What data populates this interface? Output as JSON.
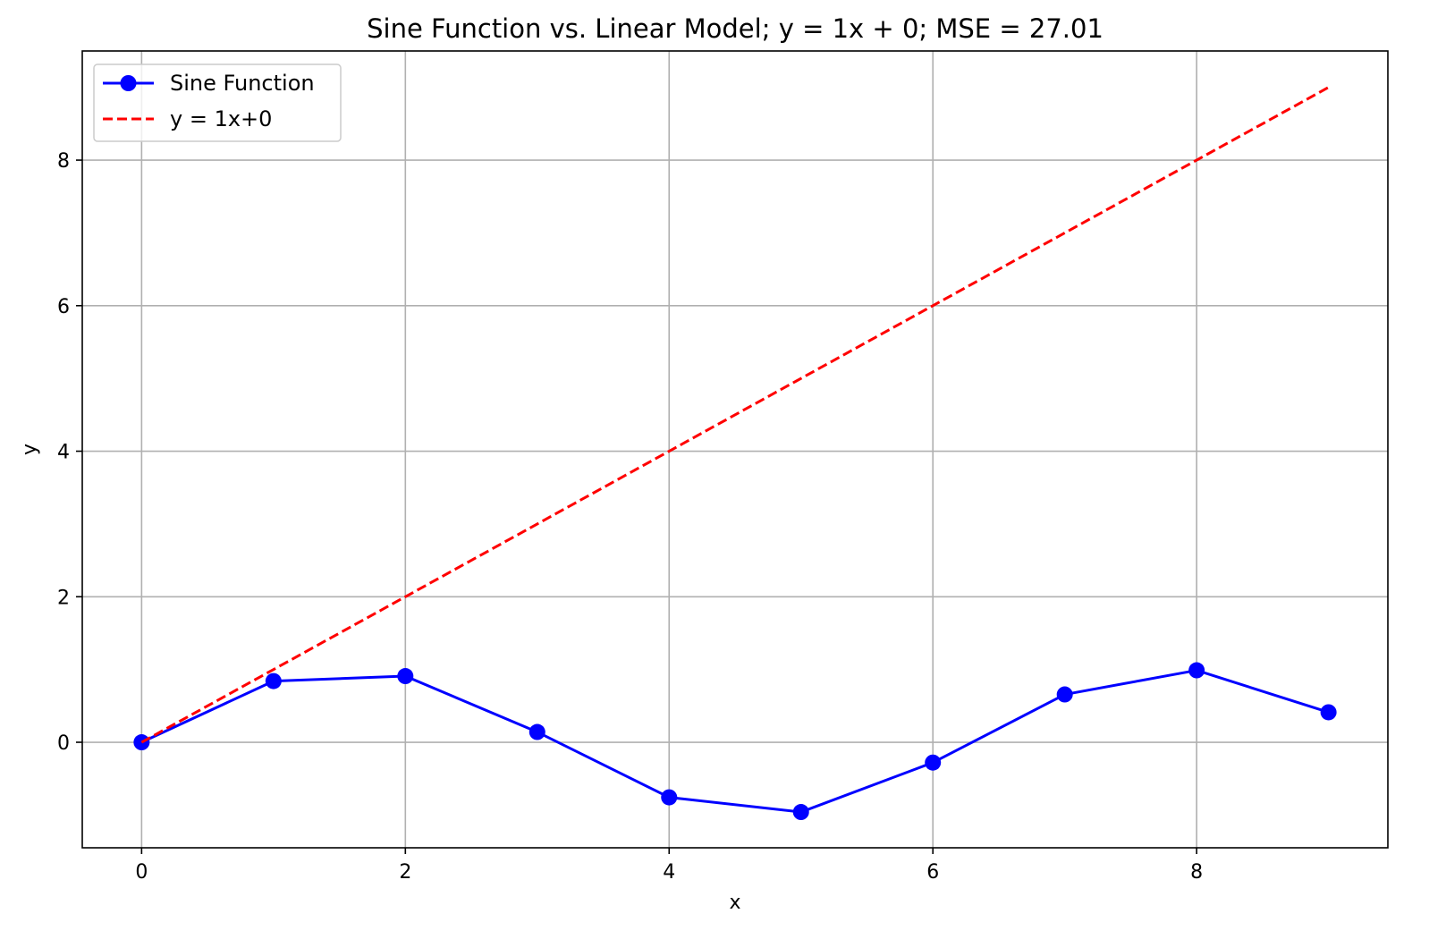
{
  "chart_data": {
    "type": "line",
    "title": "Sine Function vs. Linear Model; y = 1x + 0; MSE = 27.01",
    "xlabel": "x",
    "ylabel": "y",
    "x": [
      0,
      1,
      2,
      3,
      4,
      5,
      6,
      7,
      8,
      9
    ],
    "xlim": [
      -0.45,
      9.45
    ],
    "ylim": [
      -1.45,
      9.5
    ],
    "xticks": [
      0,
      2,
      4,
      6,
      8
    ],
    "yticks": [
      0,
      2,
      4,
      6,
      8
    ],
    "grid": true,
    "legend_position": "upper-left",
    "series": [
      {
        "name": "Sine Function",
        "style": "solid-with-markers",
        "color": "#0000ff",
        "x": [
          0,
          1,
          2,
          3,
          4,
          5,
          6,
          7,
          8,
          9
        ],
        "values": [
          0.0,
          0.841,
          0.909,
          0.141,
          -0.757,
          -0.959,
          -0.279,
          0.657,
          0.989,
          0.412
        ]
      },
      {
        "name": "y = 1x+0",
        "style": "dashed",
        "color": "#ff0000",
        "x": [
          0,
          1,
          2,
          3,
          4,
          5,
          6,
          7,
          8,
          9
        ],
        "values": [
          0,
          1,
          2,
          3,
          4,
          5,
          6,
          7,
          8,
          9
        ]
      }
    ]
  }
}
